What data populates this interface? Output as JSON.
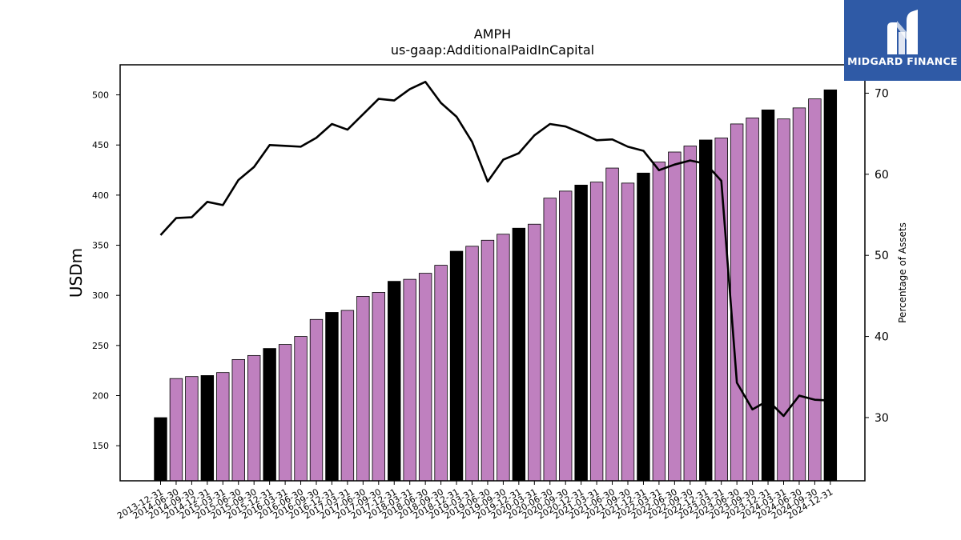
{
  "chart_data": {
    "type": "bar",
    "title": "AMPH",
    "subtitle": "us-gaap:AdditionalPaidInCapital",
    "ylabel": "USDm",
    "y2label": "Percentage of Assets",
    "ylim": [
      115,
      530
    ],
    "y2lim": [
      22.2,
      73.5
    ],
    "yticks": [
      150,
      200,
      250,
      300,
      350,
      400,
      450,
      500
    ],
    "y2ticks": [
      30,
      40,
      50,
      60,
      70
    ],
    "categories": [
      "2013-12-31",
      "2014-06-30",
      "2014-09-30",
      "2014-12-31",
      "2015-03-31",
      "2015-06-30",
      "2015-09-30",
      "2015-12-31",
      "2016-03-31",
      "2016-06-30",
      "2016-09-30",
      "2016-12-31",
      "2017-03-31",
      "2017-06-30",
      "2017-09-30",
      "2017-12-31",
      "2018-03-31",
      "2018-06-30",
      "2018-09-30",
      "2018-12-31",
      "2019-03-31",
      "2019-06-30",
      "2019-09-30",
      "2019-12-31",
      "2020-03-31",
      "2020-06-30",
      "2020-09-30",
      "2020-12-31",
      "2021-03-31",
      "2021-06-30",
      "2021-09-30",
      "2021-12-31",
      "2022-03-31",
      "2022-06-30",
      "2022-09-30",
      "2022-12-31",
      "2023-03-31",
      "2023-06-30",
      "2023-09-30",
      "2023-12-31",
      "2024-03-31",
      "2024-06-30",
      "2024-09-30",
      "2024-12-31"
    ],
    "series": [
      {
        "kind": "bar",
        "values": [
          178,
          217,
          219,
          220,
          223,
          236,
          240,
          247,
          251,
          259,
          276,
          283,
          285,
          299,
          303,
          314,
          316,
          322,
          330,
          344,
          349,
          355,
          361,
          367,
          371,
          397,
          404,
          410,
          413,
          427,
          412,
          422,
          433,
          443,
          449,
          455,
          457,
          471,
          477,
          485,
          476,
          487,
          496,
          505
        ],
        "year_end_color": "#000000",
        "quarter_color": "#bf80bf"
      },
      {
        "kind": "line",
        "color": "#000000",
        "values": [
          52.5,
          54.6,
          54.7,
          56.6,
          56.2,
          59.3,
          60.9,
          63.6,
          63.5,
          63.4,
          64.5,
          66.2,
          65.5,
          67.4,
          69.3,
          69.1,
          70.5,
          71.4,
          68.8,
          67.1,
          64.0,
          59.1,
          61.8,
          62.6,
          64.8,
          66.2,
          65.9,
          65.1,
          64.2,
          64.3,
          63.4,
          62.9,
          60.5,
          61.2,
          61.7,
          61.3,
          59.2,
          34.3,
          31.0,
          32.1,
          30.2,
          32.7,
          32.2,
          32.1
        ]
      }
    ]
  },
  "logo": {
    "text": "MIDGARD FINANCE",
    "color": "#2f5aa6"
  }
}
